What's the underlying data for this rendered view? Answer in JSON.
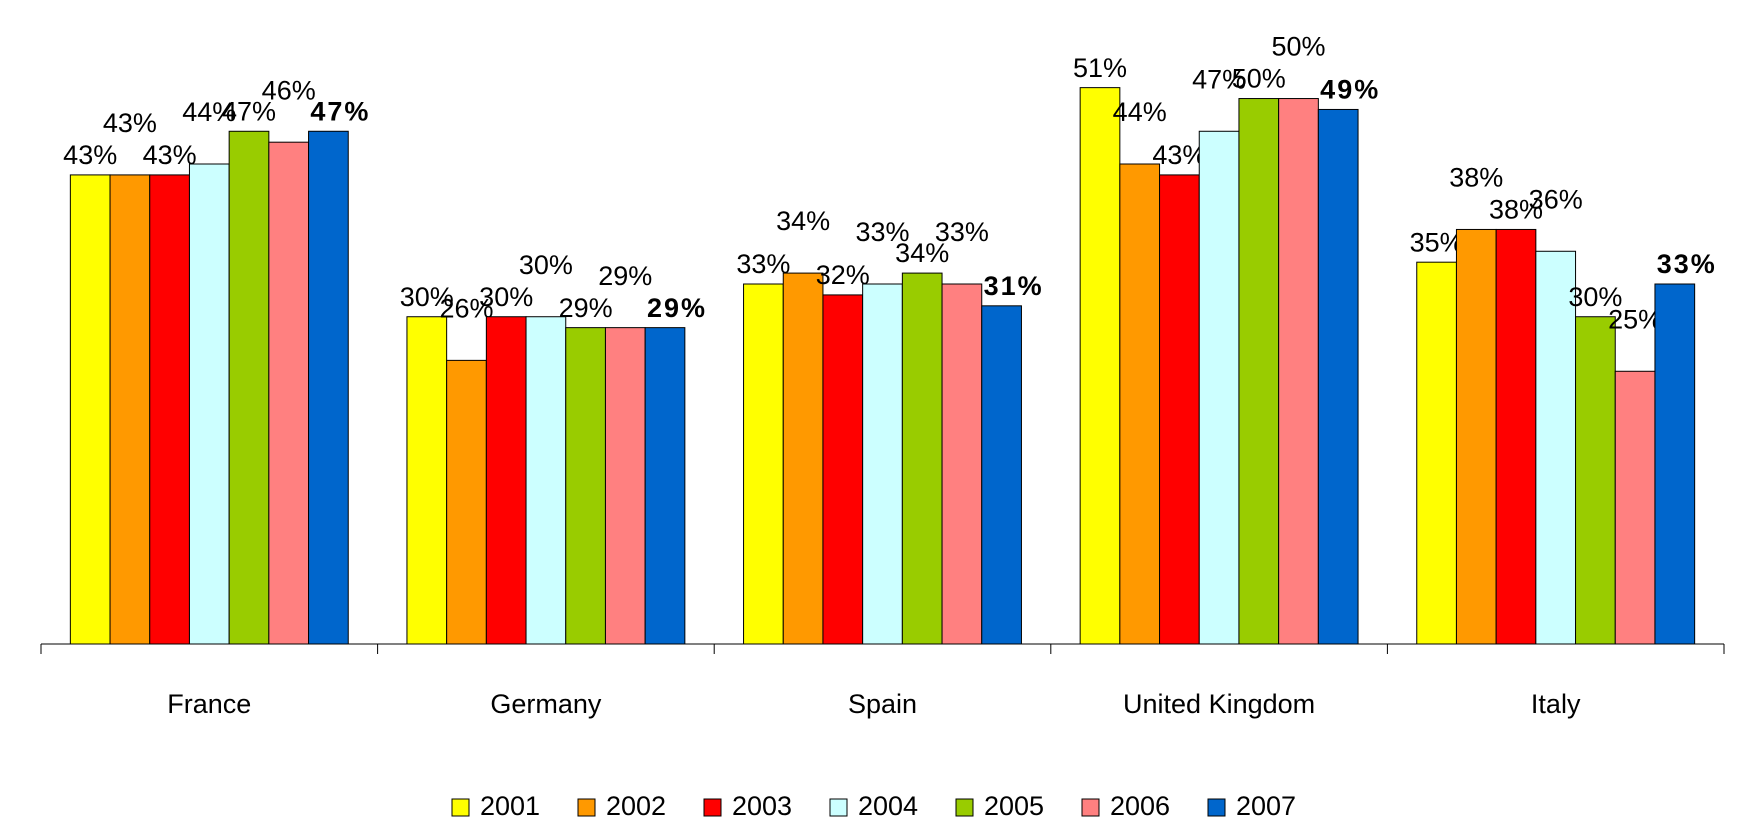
{
  "chart_data": {
    "type": "bar",
    "categories": [
      "France",
      "Germany",
      "Spain",
      "United Kingdom",
      "Italy"
    ],
    "series": [
      {
        "name": "2001",
        "color": "#ffff00",
        "values": [
          43,
          30,
          33,
          51,
          35
        ],
        "value_labels": [
          "43%",
          "30%",
          "33%",
          "51%",
          "35%"
        ]
      },
      {
        "name": "2002",
        "color": "#ff9900",
        "values": [
          43,
          26,
          34,
          44,
          38
        ],
        "value_labels": [
          "43%",
          "26%",
          "34%",
          "44%",
          "38%"
        ]
      },
      {
        "name": "2003",
        "color": "#ff0000",
        "values": [
          43,
          30,
          32,
          43,
          38
        ],
        "value_labels": [
          "43%",
          "30%",
          "32%",
          "43%",
          "38%"
        ]
      },
      {
        "name": "2004",
        "color": "#ccffff",
        "values": [
          44,
          30,
          33,
          47,
          36
        ],
        "value_labels": [
          "44%",
          "30%",
          "33%",
          "47%",
          "36%"
        ]
      },
      {
        "name": "2005",
        "color": "#99cc00",
        "values": [
          47,
          29,
          34,
          50,
          30
        ],
        "value_labels": [
          "47%",
          "29%",
          "34%",
          "50%",
          "30%"
        ]
      },
      {
        "name": "2006",
        "color": "#ff8080",
        "values": [
          46,
          29,
          33,
          50,
          25
        ],
        "value_labels": [
          "46%",
          "29%",
          "33%",
          "50%",
          "25%"
        ]
      },
      {
        "name": "2007",
        "color": "#0066cc",
        "values": [
          47,
          29,
          31,
          49,
          33
        ],
        "value_labels": [
          "47%",
          "29%",
          "31%",
          "49%",
          "33%"
        ]
      }
    ],
    "ylim": [
      0,
      55
    ],
    "legend": "bottom"
  }
}
